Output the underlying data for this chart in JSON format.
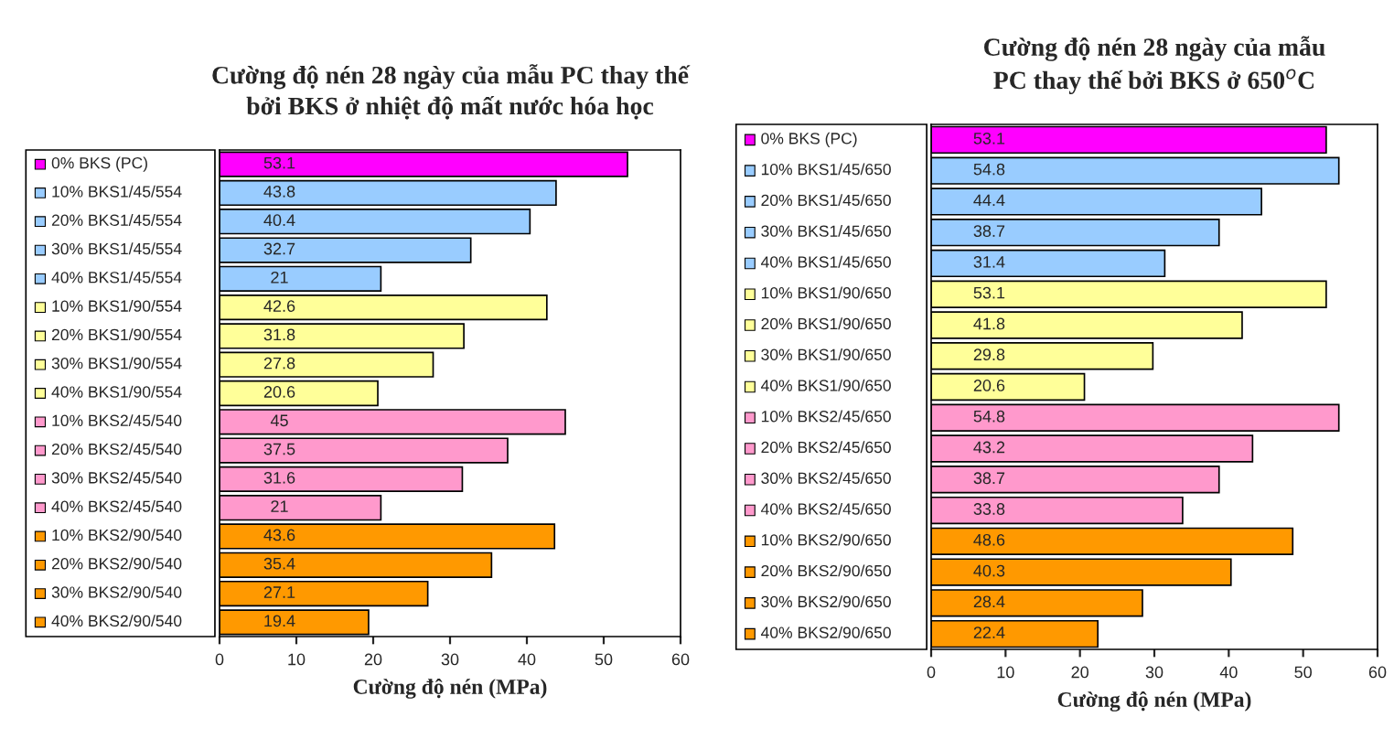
{
  "chart_data": [
    {
      "type": "bar",
      "orientation": "horizontal",
      "title": "Cường độ nén 28 ngày của mẫu PC thay thế\nbởi BKS ở nhiệt độ mất nước hóa học",
      "xlabel": "Cường độ nén (MPa)",
      "categories": [
        "0% BKS (PC)",
        "10% BKS1/45/554",
        "20% BKS1/45/554",
        "30% BKS1/45/554",
        "40% BKS1/45/554",
        "10% BKS1/90/554",
        "20% BKS1/90/554",
        "30% BKS1/90/554",
        "40% BKS1/90/554",
        "10% BKS2/45/540",
        "20% BKS2/45/540",
        "30% BKS2/45/540",
        "40% BKS2/45/540",
        "10% BKS2/90/540",
        "20% BKS2/90/540",
        "30% BKS2/90/540",
        "40% BKS2/90/540"
      ],
      "values": [
        53.1,
        43.8,
        40.4,
        32.7,
        21,
        42.6,
        31.8,
        27.8,
        20.6,
        45,
        37.5,
        31.6,
        21,
        43.6,
        35.4,
        27.1,
        19.4
      ],
      "colors": [
        "#ff00ff",
        "#99ccff",
        "#99ccff",
        "#99ccff",
        "#99ccff",
        "#ffff99",
        "#ffff99",
        "#ffff99",
        "#ffff99",
        "#ff99cc",
        "#ff99cc",
        "#ff99cc",
        "#ff99cc",
        "#ff9900",
        "#ff9900",
        "#ff9900",
        "#ff9900"
      ],
      "xlim": [
        0,
        60
      ],
      "xticks": [
        0,
        10,
        20,
        30,
        40,
        50,
        60
      ],
      "data_labels": true,
      "grid": false
    },
    {
      "type": "bar",
      "orientation": "horizontal",
      "title": "Cường độ nén 28 ngày của mẫu\nPC thay thế bởi BKS ở 650$^{o}$C",
      "xlabel": "Cường độ nén (MPa)",
      "categories": [
        "0% BKS (PC)",
        "10% BKS1/45/650",
        "20% BKS1/45/650",
        "30% BKS1/45/650",
        "40% BKS1/45/650",
        "10% BKS1/90/650",
        "20% BKS1/90/650",
        "30% BKS1/90/650",
        "40% BKS1/90/650",
        "10% BKS2/45/650",
        "20% BKS2/45/650",
        "30% BKS2/45/650",
        "40% BKS2/45/650",
        "10% BKS2/90/650",
        "20% BKS2/90/650",
        "30% BKS2/90/650",
        "40% BKS2/90/650"
      ],
      "values": [
        53.1,
        54.8,
        44.4,
        38.7,
        31.4,
        53.1,
        41.8,
        29.8,
        20.6,
        54.8,
        43.2,
        38.7,
        33.8,
        48.6,
        40.3,
        28.4,
        22.4
      ],
      "colors": [
        "#ff00ff",
        "#99ccff",
        "#99ccff",
        "#99ccff",
        "#99ccff",
        "#ffff99",
        "#ffff99",
        "#ffff99",
        "#ffff99",
        "#ff99cc",
        "#ff99cc",
        "#ff99cc",
        "#ff99cc",
        "#ff9900",
        "#ff9900",
        "#ff9900",
        "#ff9900"
      ],
      "xlim": [
        0,
        60
      ],
      "xticks": [
        0,
        10,
        20,
        30,
        40,
        50,
        60
      ],
      "data_labels": true,
      "grid": false
    }
  ]
}
